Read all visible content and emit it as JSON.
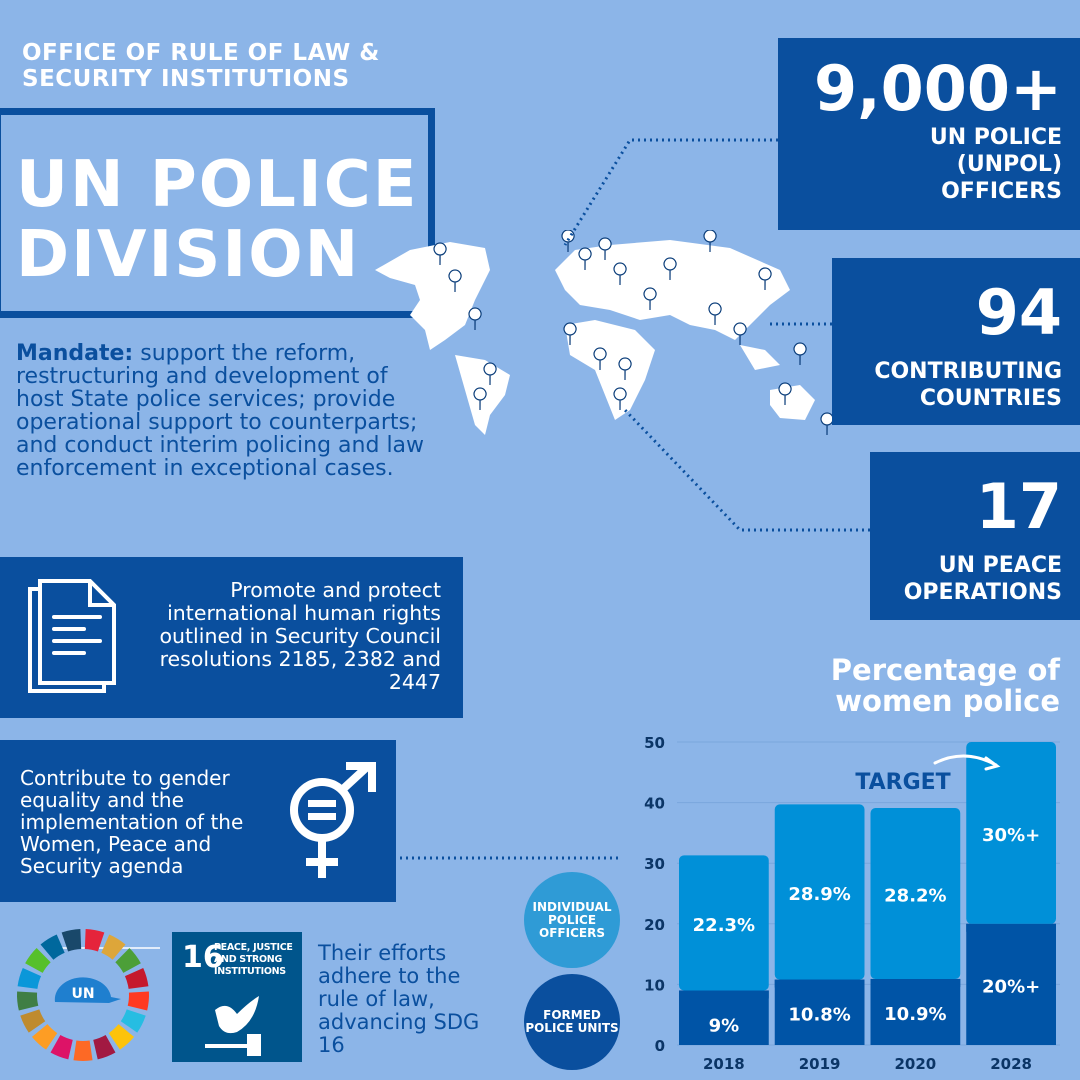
{
  "header": {
    "office_line1": "OFFICE OF RULE OF LAW &",
    "office_line2": "SECURITY INSTITUTIONS",
    "title_line1": "UN POLICE",
    "title_line2": "DIVISION"
  },
  "mandate": {
    "label": "Mandate:",
    "text": " support the reform, restructuring and development of host State police services; provide operational support to counterparts; and conduct interim policing and law enforcement in exceptional cases."
  },
  "boxes": [
    {
      "icon": "document-icon",
      "text": "Promote and protect international human rights outlined in Security Council resolutions 2185, 2382 and 2447"
    },
    {
      "icon": "gender-equality-icon",
      "text": "Contribute to gender equality and the implementation of the Women, Peace and Security agenda"
    }
  ],
  "stats": [
    {
      "number": "9,000+",
      "label_lines": [
        "UN POLICE",
        "(UNPOL)",
        "OFFICERS"
      ]
    },
    {
      "number": "94",
      "label_lines": [
        "CONTRIBUTING",
        "COUNTRIES"
      ]
    },
    {
      "number": "17",
      "label_lines": [
        "UN PEACE",
        "OPERATIONS"
      ]
    }
  ],
  "sdg": {
    "wheel_label": "UN",
    "goal_number": "16",
    "goal_line1": "PEACE, JUSTICE",
    "goal_line2": "AND STRONG",
    "goal_line3": "INSTITUTIONS",
    "text": "Their efforts adhere to the rule of law, advancing SDG 16"
  },
  "colors": {
    "background": "#8cb5e8",
    "dark": "#0a4f9e",
    "light_bar": "#0090d8",
    "legend_light": "#2f9bd6"
  },
  "chart_data": {
    "type": "bar",
    "stacked": true,
    "title": "Percentage of women police",
    "categories": [
      "2018",
      "2019",
      "2020",
      "2028"
    ],
    "ylim": [
      0,
      50
    ],
    "yticks": [
      0,
      10,
      20,
      30,
      40,
      50
    ],
    "grid": true,
    "annotation": "TARGET",
    "series": [
      {
        "name": "FORMED POLICE UNITS",
        "color": "#0054a6",
        "values": [
          9,
          10.8,
          10.9,
          20
        ],
        "labels": [
          "9%",
          "10.8%",
          "10.9%",
          "20%+"
        ]
      },
      {
        "name": "INDIVIDUAL POLICE OFFICERS",
        "color": "#0090d8",
        "values": [
          22.3,
          28.9,
          28.2,
          30
        ],
        "labels": [
          "22.3%",
          "28.9%",
          "28.2%",
          "30%+"
        ]
      }
    ]
  }
}
